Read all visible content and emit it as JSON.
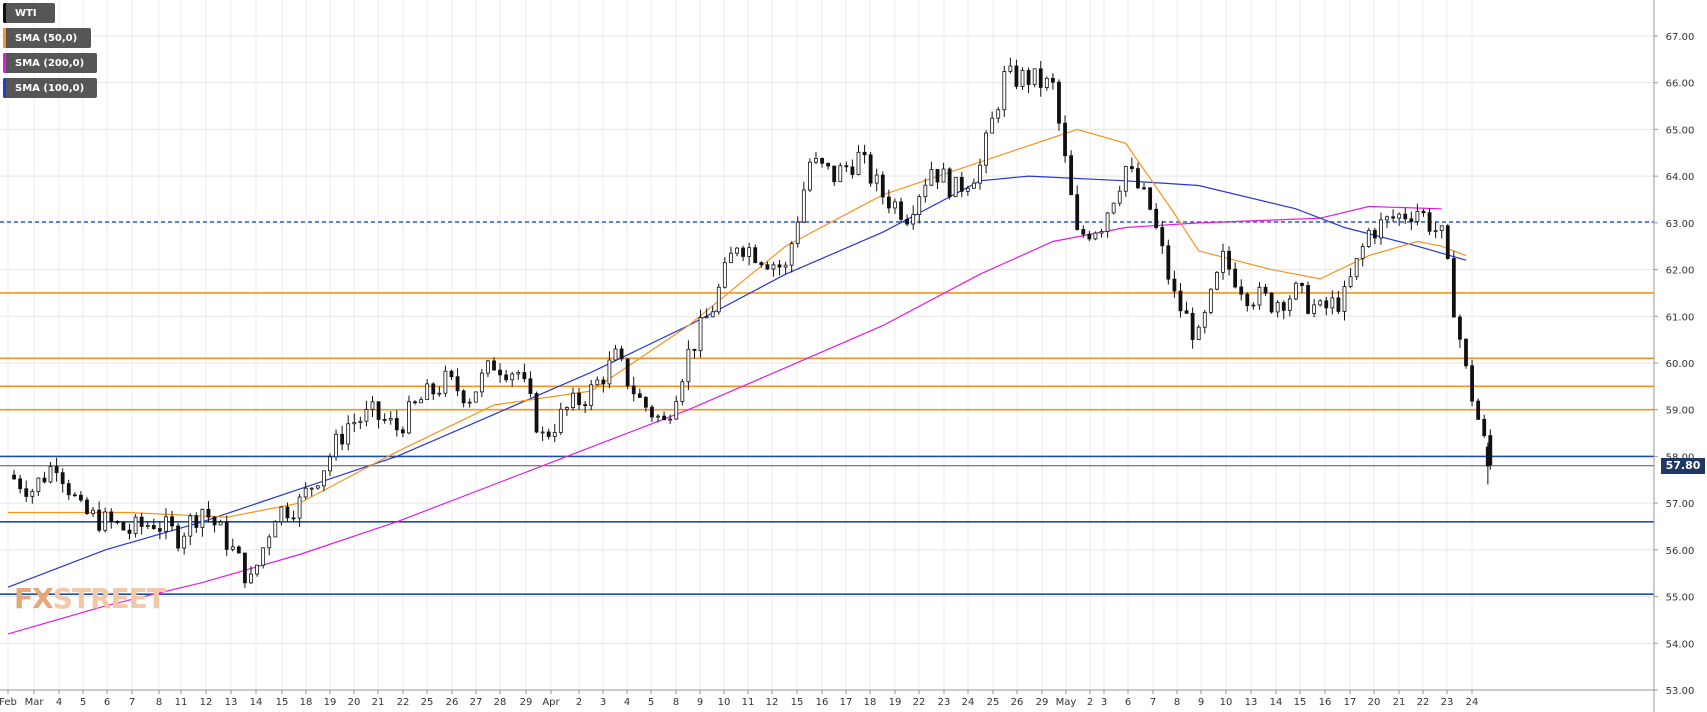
{
  "header": {
    "symbol": "WTI"
  },
  "legend": [
    {
      "label": "SMA (50,0)",
      "color": "#f7931e"
    },
    {
      "label": "SMA (200,0)",
      "color": "#e21be2"
    },
    {
      "label": "SMA (100,0)",
      "color": "#2537d6"
    }
  ],
  "watermark": {
    "text_a": "FX",
    "text_b": "STREET"
  },
  "last_price": "57.80",
  "chart_data": {
    "type": "candlestick",
    "y_range": [
      53.0,
      67.5
    ],
    "y_ticks": [
      "53.00",
      "54.00",
      "55.00",
      "56.00",
      "57.00",
      "58.00",
      "59.00",
      "60.00",
      "61.00",
      "62.00",
      "63.00",
      "64.00",
      "65.00",
      "66.00",
      "67.00"
    ],
    "x_ticks": [
      "Feb",
      "Mar",
      "4",
      "5",
      "6",
      "7",
      "8",
      "11",
      "12",
      "13",
      "14",
      "15",
      "18",
      "19",
      "20",
      "21",
      "22",
      "25",
      "26",
      "27",
      "28",
      "29",
      "Apr",
      "2",
      "3",
      "4",
      "5",
      "8",
      "9",
      "10",
      "11",
      "12",
      "15",
      "16",
      "17",
      "18",
      "19",
      "22",
      "23",
      "24",
      "25",
      "26",
      "29",
      "May",
      "2",
      "3",
      "6",
      "7",
      "8",
      "9",
      "10",
      "13",
      "14",
      "15",
      "16",
      "17",
      "20",
      "21",
      "22",
      "23",
      "24"
    ],
    "horizontal_levels": [
      {
        "value": 61.5,
        "color": "#f7931e",
        "style": "solid"
      },
      {
        "value": 60.1,
        "color": "#f7931e",
        "style": "solid"
      },
      {
        "value": 59.5,
        "color": "#f7931e",
        "style": "solid"
      },
      {
        "value": 59.0,
        "color": "#f7931e",
        "style": "solid"
      },
      {
        "value": 58.0,
        "color": "#1f4e9e",
        "style": "solid"
      },
      {
        "value": 56.6,
        "color": "#1f4e9e",
        "style": "solid"
      },
      {
        "value": 55.05,
        "color": "#1f4e9e",
        "style": "solid"
      },
      {
        "value": 63.02,
        "color": "#3a6fd8",
        "style": "dashed"
      },
      {
        "value": 57.8,
        "color": "#555555",
        "style": "thin"
      }
    ],
    "close_path": [
      [
        0,
        57.6
      ],
      [
        1,
        57.3
      ],
      [
        2,
        57.9
      ],
      [
        3,
        56.8
      ],
      [
        4,
        56.6
      ],
      [
        5,
        56.4
      ],
      [
        6,
        56.6
      ],
      [
        7,
        56.3
      ],
      [
        8,
        56.9
      ],
      [
        9,
        56.2
      ],
      [
        10,
        55.3
      ],
      [
        11,
        56.8
      ],
      [
        12,
        57.0
      ],
      [
        13,
        57.8
      ],
      [
        14,
        58.7
      ],
      [
        15,
        58.9
      ],
      [
        16,
        58.6
      ],
      [
        17,
        59.2
      ],
      [
        18,
        59.6
      ],
      [
        19,
        59.3
      ],
      [
        20,
        60.0
      ],
      [
        21,
        59.8
      ],
      [
        22,
        58.4
      ],
      [
        23,
        59.0
      ],
      [
        24,
        59.4
      ],
      [
        25,
        60.1
      ],
      [
        26,
        59.2
      ],
      [
        27,
        58.7
      ],
      [
        28,
        60.2
      ],
      [
        29,
        61.2
      ],
      [
        30,
        62.6
      ],
      [
        31,
        62.3
      ],
      [
        32,
        62.0
      ],
      [
        33,
        64.3
      ],
      [
        34,
        64.0
      ],
      [
        35,
        64.4
      ],
      [
        36,
        63.6
      ],
      [
        37,
        63.2
      ],
      [
        38,
        64.2
      ],
      [
        39,
        63.7
      ],
      [
        40,
        64.2
      ],
      [
        41,
        66.1
      ],
      [
        42,
        66.1
      ],
      [
        43,
        65.9
      ],
      [
        44,
        62.7
      ],
      [
        45,
        63.0
      ],
      [
        46,
        64.2
      ],
      [
        47,
        63.3
      ],
      [
        48,
        61.4
      ],
      [
        49,
        60.5
      ],
      [
        50,
        62.2
      ],
      [
        51,
        61.5
      ],
      [
        52,
        61.3
      ],
      [
        53,
        61.5
      ],
      [
        54,
        61.1
      ],
      [
        55,
        61.4
      ],
      [
        56,
        62.8
      ],
      [
        57,
        63.1
      ],
      [
        58,
        63.3
      ],
      [
        59,
        62.7
      ],
      [
        60,
        59.8
      ],
      [
        61,
        57.8
      ]
    ],
    "sma_50": [
      [
        0,
        56.8
      ],
      [
        5,
        56.8
      ],
      [
        9,
        56.7
      ],
      [
        12,
        57.0
      ],
      [
        16,
        58.1
      ],
      [
        20,
        59.1
      ],
      [
        24,
        59.4
      ],
      [
        28,
        60.8
      ],
      [
        32,
        62.5
      ],
      [
        36,
        63.6
      ],
      [
        40,
        64.3
      ],
      [
        44,
        65.0
      ],
      [
        46,
        64.7
      ],
      [
        48,
        63.2
      ],
      [
        49,
        62.4
      ],
      [
        52,
        62.0
      ],
      [
        54,
        61.8
      ],
      [
        56,
        62.3
      ],
      [
        58,
        62.6
      ],
      [
        59,
        62.5
      ],
      [
        60,
        62.3
      ]
    ],
    "sma_100": [
      [
        0,
        55.2
      ],
      [
        4,
        56.0
      ],
      [
        8,
        56.6
      ],
      [
        12,
        57.3
      ],
      [
        16,
        58.0
      ],
      [
        20,
        58.9
      ],
      [
        24,
        59.8
      ],
      [
        28,
        60.8
      ],
      [
        32,
        61.9
      ],
      [
        36,
        62.8
      ],
      [
        40,
        63.9
      ],
      [
        42,
        64.0
      ],
      [
        46,
        63.9
      ],
      [
        49,
        63.8
      ],
      [
        53,
        63.3
      ],
      [
        55,
        62.9
      ],
      [
        58,
        62.5
      ],
      [
        60,
        62.2
      ]
    ],
    "sma_200": [
      [
        0,
        54.2
      ],
      [
        4,
        54.8
      ],
      [
        8,
        55.3
      ],
      [
        12,
        55.9
      ],
      [
        16,
        56.6
      ],
      [
        20,
        57.4
      ],
      [
        24,
        58.2
      ],
      [
        28,
        59.0
      ],
      [
        32,
        59.9
      ],
      [
        36,
        60.8
      ],
      [
        40,
        61.9
      ],
      [
        43,
        62.6
      ],
      [
        46,
        62.9
      ],
      [
        49,
        63.0
      ],
      [
        54,
        63.1
      ],
      [
        56,
        63.35
      ],
      [
        59,
        63.3
      ]
    ]
  }
}
